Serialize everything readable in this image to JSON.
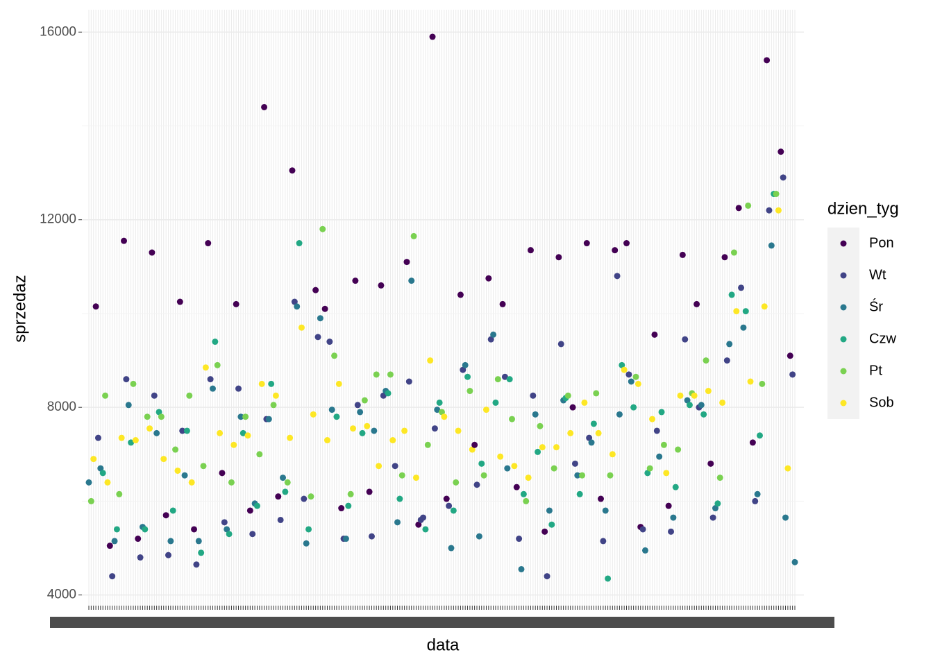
{
  "chart_data": {
    "type": "scatter",
    "x_label": "data",
    "y_label": "sprzedaz",
    "legend": {
      "title": "dzien_tyg",
      "position": "right"
    },
    "series": [
      {
        "name": "Pon",
        "color": "#440154"
      },
      {
        "name": "Wt",
        "color": "#414487"
      },
      {
        "name": "Śr",
        "color": "#2A788E"
      },
      {
        "name": "Czw",
        "color": "#22A884"
      },
      {
        "name": "Pt",
        "color": "#7AD151"
      },
      {
        "name": "Sob",
        "color": "#FDE725"
      }
    ],
    "ylim": [
      3773,
      16477
    ],
    "yticks": [
      4000,
      8000,
      12000,
      16000
    ],
    "minor_yticks": [
      6000,
      10000,
      14000
    ],
    "grid": true,
    "values": [
      6400,
      6000,
      6900,
      10150,
      7350,
      6700,
      6600,
      8250,
      6400,
      5050,
      4400,
      5150,
      5400,
      6150,
      7350,
      11550,
      8600,
      8050,
      7250,
      8500,
      7300,
      5200,
      4800,
      5450,
      5400,
      7800,
      7550,
      11300,
      8250,
      7450,
      7900,
      7800,
      6900,
      5700,
      4850,
      5150,
      5800,
      7100,
      6650,
      10250,
      7500,
      6550,
      7500,
      8250,
      6400,
      5400,
      4650,
      5150,
      4900,
      6750,
      8850,
      11500,
      8600,
      8400,
      9400,
      8900,
      7450,
      6600,
      5550,
      5400,
      5300,
      6400,
      7200,
      10200,
      8400,
      7800,
      7450,
      7800,
      7400,
      5800,
      5300,
      5950,
      5900,
      7000,
      8500,
      14400,
      7750,
      7750,
      8500,
      8050,
      8250,
      6100,
      5600,
      6500,
      6200,
      6400,
      7350,
      13050,
      10250,
      10150,
      11500,
      9700,
      6050,
      5100,
      5400,
      6100,
      7850,
      10500,
      9500,
      9900,
      11800,
      10100,
      7300,
      9400,
      7950,
      9100,
      7800,
      8500,
      5850,
      5200,
      5200,
      5900,
      6150,
      7550,
      10700,
      8050,
      7900,
      7450,
      8150,
      7600,
      6200,
      5250,
      7500,
      8700,
      6750,
      10600,
      8250,
      8350,
      8300,
      8700,
      7300,
      6750,
      5550,
      6050,
      6550,
      7500,
      11100,
      8550,
      10700,
      11650,
      6500,
      5500,
      5600,
      5650,
      5400,
      7200,
      9000,
      15900,
      7550,
      7950,
      8100,
      7900,
      7800,
      6050,
      5900,
      5000,
      5800,
      6400,
      7500,
      10400,
      8800,
      8900,
      8650,
      8350,
      7100,
      7200,
      6350,
      5250,
      6800,
      6550,
      7950,
      10750,
      9450,
      9550,
      8100,
      8600,
      6950,
      10200,
      8650,
      6700,
      8600,
      7750,
      6750,
      6300,
      5200,
      4550,
      6150,
      6000,
      6500,
      11350,
      8250,
      7850,
      7050,
      7600,
      7150,
      5350,
      4400,
      5800,
      5500,
      6700,
      7150,
      11200,
      9350,
      8150,
      8200,
      8250,
      7450,
      8000,
      6800,
      6550,
      6150,
      6550,
      8100,
      11500,
      7350,
      7250,
      7650,
      8300,
      7450,
      6050,
      5150,
      5800,
      4350,
      6550,
      7000,
      11350,
      10800,
      7850,
      8900,
      8800,
      11500,
      8700,
      8550,
      8000,
      8650,
      8500,
      5450,
      5400,
      4950,
      6600,
      6700,
      7750,
      9550,
      7500,
      6950,
      7900,
      7200,
      6600,
      5900,
      5350,
      5650,
      6300,
      7100,
      8250,
      11250,
      9450,
      8150,
      8050,
      8300,
      8250,
      10200,
      8000,
      8050,
      7850,
      9000,
      8350,
      6800,
      5650,
      5850,
      5950,
      6500,
      8100,
      11200,
      9000,
      9350,
      10400,
      11300,
      10050,
      12250,
      10550,
      9700,
      10050,
      12300,
      8550,
      7250,
      6000,
      6150,
      7400,
      8500,
      10150,
      15400,
      12200,
      11450,
      12550,
      12550,
      12200,
      13450,
      12900,
      5650,
      6700,
      9100,
      8700,
      4700
    ],
    "day": [
      "Śr",
      "Pt",
      "Sob",
      "Pon",
      "Wt",
      "Śr",
      "Czw",
      "Pt",
      "Sob",
      "Pon",
      "Wt",
      "Śr",
      "Czw",
      "Pt",
      "Sob",
      "Pon",
      "Wt",
      "Śr",
      "Czw",
      "Pt",
      "Sob",
      "Pon",
      "Wt",
      "Śr",
      "Czw",
      "Pt",
      "Sob",
      "Pon",
      "Wt",
      "Śr",
      "Czw",
      "Pt",
      "Sob",
      "Pon",
      "Wt",
      "Śr",
      "Czw",
      "Pt",
      "Sob",
      "Pon",
      "Wt",
      "Śr",
      "Czw",
      "Pt",
      "Sob",
      "Pon",
      "Wt",
      "Śr",
      "Czw",
      "Pt",
      "Sob",
      "Pon",
      "Wt",
      "Śr",
      "Czw",
      "Pt",
      "Sob",
      "Pon",
      "Wt",
      "Śr",
      "Czw",
      "Pt",
      "Sob",
      "Pon",
      "Wt",
      "Śr",
      "Czw",
      "Pt",
      "Sob",
      "Pon",
      "Wt",
      "Śr",
      "Czw",
      "Pt",
      "Sob",
      "Pon",
      "Wt",
      "Śr",
      "Czw",
      "Pt",
      "Sob",
      "Pon",
      "Wt",
      "Śr",
      "Czw",
      "Pt",
      "Sob",
      "Pon",
      "Wt",
      "Śr",
      "Czw",
      "Sob",
      "Wt",
      "Śr",
      "Czw",
      "Pt",
      "Sob",
      "Pon",
      "Wt",
      "Śr",
      "Pt",
      "Pon",
      "Sob",
      "Wt",
      "Śr",
      "Pt",
      "Czw",
      "Sob",
      "Pon",
      "Wt",
      "Śr",
      "Czw",
      "Pt",
      "Sob",
      "Pon",
      "Wt",
      "Śr",
      "Czw",
      "Pt",
      "Sob",
      "Pon",
      "Wt",
      "Śr",
      "Pt",
      "Sob",
      "Pon",
      "Wt",
      "Śr",
      "Czw",
      "Pt",
      "Sob",
      "Wt",
      "Śr",
      "Czw",
      "Pt",
      "Sob",
      "Pon",
      "Wt",
      "Śr",
      "Pt",
      "Sob",
      "Pon",
      "Wt",
      "Wt",
      "Czw",
      "Pt",
      "Sob",
      "Pon",
      "Wt",
      "Śr",
      "Czw",
      "Pt",
      "Sob",
      "Pon",
      "Wt",
      "Śr",
      "Czw",
      "Pt",
      "Sob",
      "Pon",
      "Wt",
      "Śr",
      "Czw",
      "Pt",
      "Sob",
      "Pon",
      "Wt",
      "Śr",
      "Czw",
      "Pt",
      "Sob",
      "Pon",
      "Wt",
      "Śr",
      "Czw",
      "Pt",
      "Sob",
      "Pon",
      "Wt",
      "Śr",
      "Czw",
      "Pt",
      "Sob",
      "Pon",
      "Wt",
      "Śr",
      "Czw",
      "Pt",
      "Sob",
      "Pon",
      "Wt",
      "Śr",
      "Czw",
      "Pt",
      "Sob",
      "Pon",
      "Wt",
      "Śr",
      "Czw",
      "Pt",
      "Sob",
      "Pon",
      "Wt",
      "Śr",
      "Czw",
      "Pt",
      "Sob",
      "Pon",
      "Wt",
      "Śr",
      "Czw",
      "Pt",
      "Sob",
      "Pon",
      "Wt",
      "Śr",
      "Czw",
      "Pt",
      "Sob",
      "Pon",
      "Wt",
      "Śr",
      "Czw",
      "Pt",
      "Sob",
      "Pon",
      "Wt",
      "Śr",
      "Czw",
      "Sob",
      "Pon",
      "Wt",
      "Śr",
      "Czw",
      "Pt",
      "Sob",
      "Pon",
      "Wt",
      "Śr",
      "Czw",
      "Pt",
      "Sob",
      "Pon",
      "Wt",
      "Śr",
      "Czw",
      "Pt",
      "Sob",
      "Pon",
      "Wt",
      "Śr",
      "Czw",
      "Pt",
      "Sob",
      "Pon",
      "Wt",
      "Śr",
      "Czw",
      "Pt",
      "Sob",
      "Pon",
      "Wt",
      "Śr",
      "Czw",
      "Pt",
      "Sob",
      "Pon",
      "Wt",
      "Śr",
      "Czw",
      "Pt",
      "Sob",
      "Pon",
      "Wt",
      "Śr",
      "Czw",
      "Pt",
      "Sob",
      "Pon",
      "Wt",
      "Śr",
      "Czw",
      "Pt",
      "Sob",
      "Pon",
      "Wt",
      "Śr",
      "Czw",
      "Pt",
      "Sob",
      "Pon",
      "Wt",
      "Śr",
      "Czw",
      "Pt",
      "Sob",
      "Pon",
      "Wt",
      "Śr",
      "Sob",
      "Pon",
      "Wt",
      "Śr"
    ]
  }
}
